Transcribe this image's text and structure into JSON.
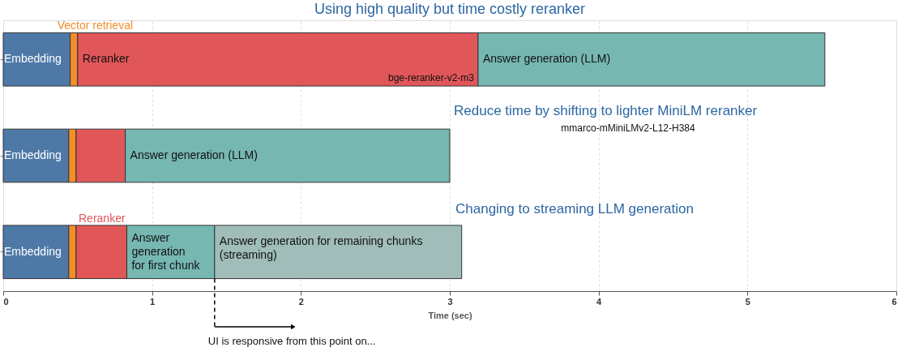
{
  "chart_data": {
    "type": "bar",
    "orientation": "horizontal",
    "stacked": true,
    "title": "Using high quality but time costly reranker",
    "xlabel": "Time (sec)",
    "categories": [
      null,
      null,
      null
    ],
    "series": [
      {
        "color": "#4e79a7",
        "values": [
          0.45,
          0.44,
          0.44
        ],
        "value_labels": [
          "Embedding",
          "Embedding",
          "Embedding"
        ]
      },
      {
        "color": "#f28e2b",
        "values": [
          0.05,
          0.05,
          0.05
        ],
        "value_labels": [
          "Vector retrieval",
          null,
          null
        ]
      },
      {
        "color": "#e15759",
        "values": [
          2.69,
          0.33,
          0.34
        ],
        "value_labels": [
          "Reranker",
          null,
          "Reranker"
        ]
      },
      {
        "color": "#76b7b2",
        "values": [
          2.33,
          2.18,
          0.59
        ],
        "value_labels": [
          "Answer generation (LLM)",
          "Answer generation (LLM)",
          "Answer\ngeneration\nfor first chunk"
        ]
      },
      {
        "color": "#a0bdb9",
        "values": [
          null,
          null,
          1.66
        ],
        "value_labels": [
          null,
          null,
          "Answer generation for remaining chunks\n(streaming)"
        ]
      }
    ],
    "xlim": [
      0,
      6
    ],
    "xticks": [
      0,
      1,
      2,
      3,
      4,
      5,
      6
    ],
    "grid": "x",
    "tick_labels": "x",
    "ref_lines": [
      {
        "axis": "x",
        "value": 1.42,
        "label": "UI is responsive from this point on...",
        "color": "#000000",
        "line_style": "dashed"
      }
    ],
    "annotations": [
      "bge-reranker-v2-m3",
      "Reduce time by shifting to lighter MiniLM reranker",
      "mmarco-mMiniLMv2-L12-H384",
      "Changing to streaming LLM generation"
    ]
  }
}
